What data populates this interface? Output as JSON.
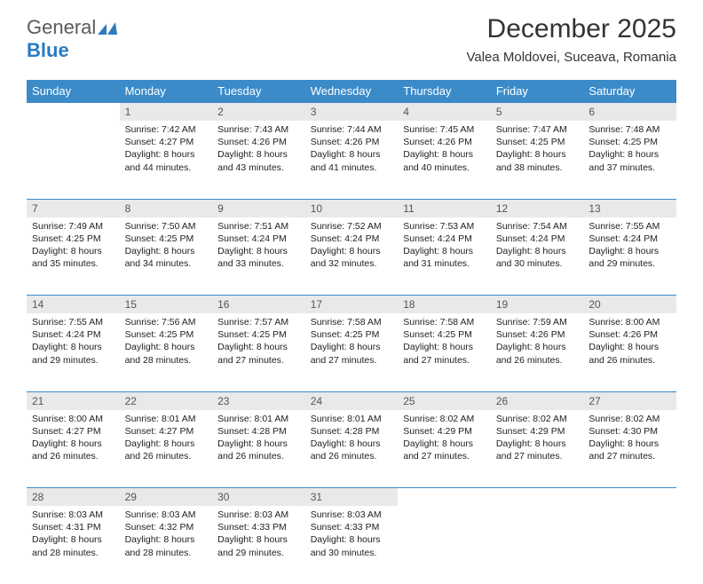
{
  "logo": {
    "part1": "General",
    "part2": "Blue"
  },
  "title": "December 2025",
  "location": "Valea Moldovei, Suceava, Romania",
  "colors": {
    "header_bg": "#3b8bc9",
    "header_text": "#ffffff",
    "daynum_bg": "#e9e9e9",
    "daynum_text": "#555555",
    "rule": "#3b8bc9",
    "logo_gray": "#5a5a5a",
    "logo_blue": "#2b7bbf"
  },
  "day_headers": [
    "Sunday",
    "Monday",
    "Tuesday",
    "Wednesday",
    "Thursday",
    "Friday",
    "Saturday"
  ],
  "weeks": [
    [
      null,
      {
        "n": "1",
        "sunrise": "7:42 AM",
        "sunset": "4:27 PM",
        "daylight": "8 hours and 44 minutes."
      },
      {
        "n": "2",
        "sunrise": "7:43 AM",
        "sunset": "4:26 PM",
        "daylight": "8 hours and 43 minutes."
      },
      {
        "n": "3",
        "sunrise": "7:44 AM",
        "sunset": "4:26 PM",
        "daylight": "8 hours and 41 minutes."
      },
      {
        "n": "4",
        "sunrise": "7:45 AM",
        "sunset": "4:26 PM",
        "daylight": "8 hours and 40 minutes."
      },
      {
        "n": "5",
        "sunrise": "7:47 AM",
        "sunset": "4:25 PM",
        "daylight": "8 hours and 38 minutes."
      },
      {
        "n": "6",
        "sunrise": "7:48 AM",
        "sunset": "4:25 PM",
        "daylight": "8 hours and 37 minutes."
      }
    ],
    [
      {
        "n": "7",
        "sunrise": "7:49 AM",
        "sunset": "4:25 PM",
        "daylight": "8 hours and 35 minutes."
      },
      {
        "n": "8",
        "sunrise": "7:50 AM",
        "sunset": "4:25 PM",
        "daylight": "8 hours and 34 minutes."
      },
      {
        "n": "9",
        "sunrise": "7:51 AM",
        "sunset": "4:24 PM",
        "daylight": "8 hours and 33 minutes."
      },
      {
        "n": "10",
        "sunrise": "7:52 AM",
        "sunset": "4:24 PM",
        "daylight": "8 hours and 32 minutes."
      },
      {
        "n": "11",
        "sunrise": "7:53 AM",
        "sunset": "4:24 PM",
        "daylight": "8 hours and 31 minutes."
      },
      {
        "n": "12",
        "sunrise": "7:54 AM",
        "sunset": "4:24 PM",
        "daylight": "8 hours and 30 minutes."
      },
      {
        "n": "13",
        "sunrise": "7:55 AM",
        "sunset": "4:24 PM",
        "daylight": "8 hours and 29 minutes."
      }
    ],
    [
      {
        "n": "14",
        "sunrise": "7:55 AM",
        "sunset": "4:24 PM",
        "daylight": "8 hours and 29 minutes."
      },
      {
        "n": "15",
        "sunrise": "7:56 AM",
        "sunset": "4:25 PM",
        "daylight": "8 hours and 28 minutes."
      },
      {
        "n": "16",
        "sunrise": "7:57 AM",
        "sunset": "4:25 PM",
        "daylight": "8 hours and 27 minutes."
      },
      {
        "n": "17",
        "sunrise": "7:58 AM",
        "sunset": "4:25 PM",
        "daylight": "8 hours and 27 minutes."
      },
      {
        "n": "18",
        "sunrise": "7:58 AM",
        "sunset": "4:25 PM",
        "daylight": "8 hours and 27 minutes."
      },
      {
        "n": "19",
        "sunrise": "7:59 AM",
        "sunset": "4:26 PM",
        "daylight": "8 hours and 26 minutes."
      },
      {
        "n": "20",
        "sunrise": "8:00 AM",
        "sunset": "4:26 PM",
        "daylight": "8 hours and 26 minutes."
      }
    ],
    [
      {
        "n": "21",
        "sunrise": "8:00 AM",
        "sunset": "4:27 PM",
        "daylight": "8 hours and 26 minutes."
      },
      {
        "n": "22",
        "sunrise": "8:01 AM",
        "sunset": "4:27 PM",
        "daylight": "8 hours and 26 minutes."
      },
      {
        "n": "23",
        "sunrise": "8:01 AM",
        "sunset": "4:28 PM",
        "daylight": "8 hours and 26 minutes."
      },
      {
        "n": "24",
        "sunrise": "8:01 AM",
        "sunset": "4:28 PM",
        "daylight": "8 hours and 26 minutes."
      },
      {
        "n": "25",
        "sunrise": "8:02 AM",
        "sunset": "4:29 PM",
        "daylight": "8 hours and 27 minutes."
      },
      {
        "n": "26",
        "sunrise": "8:02 AM",
        "sunset": "4:29 PM",
        "daylight": "8 hours and 27 minutes."
      },
      {
        "n": "27",
        "sunrise": "8:02 AM",
        "sunset": "4:30 PM",
        "daylight": "8 hours and 27 minutes."
      }
    ],
    [
      {
        "n": "28",
        "sunrise": "8:03 AM",
        "sunset": "4:31 PM",
        "daylight": "8 hours and 28 minutes."
      },
      {
        "n": "29",
        "sunrise": "8:03 AM",
        "sunset": "4:32 PM",
        "daylight": "8 hours and 28 minutes."
      },
      {
        "n": "30",
        "sunrise": "8:03 AM",
        "sunset": "4:33 PM",
        "daylight": "8 hours and 29 minutes."
      },
      {
        "n": "31",
        "sunrise": "8:03 AM",
        "sunset": "4:33 PM",
        "daylight": "8 hours and 30 minutes."
      },
      null,
      null,
      null
    ]
  ],
  "labels": {
    "sunrise": "Sunrise:",
    "sunset": "Sunset:",
    "daylight": "Daylight:"
  }
}
